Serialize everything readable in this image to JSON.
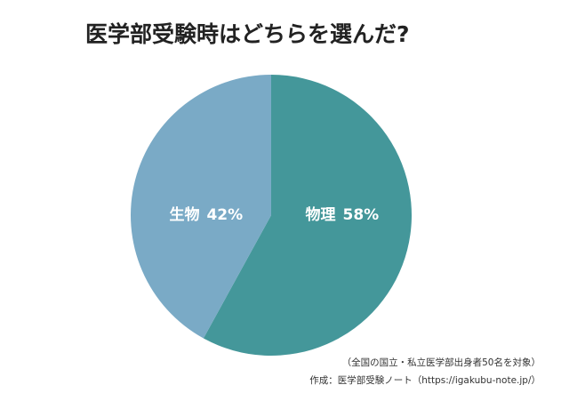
{
  "chart_data": {
    "type": "pie",
    "title": "医学部受験時はどちらを選んだ?",
    "categories": [
      "物理",
      "生物"
    ],
    "values": [
      58,
      42
    ],
    "value_labels": [
      "58%",
      "42%"
    ],
    "colors": [
      "#44979a",
      "#7aaac6"
    ],
    "notes": [
      "（全国の国立・私立医学部出身者50名を対象）",
      "作成：医学部受験ノート（https://igakubu-note.jp/）"
    ]
  }
}
